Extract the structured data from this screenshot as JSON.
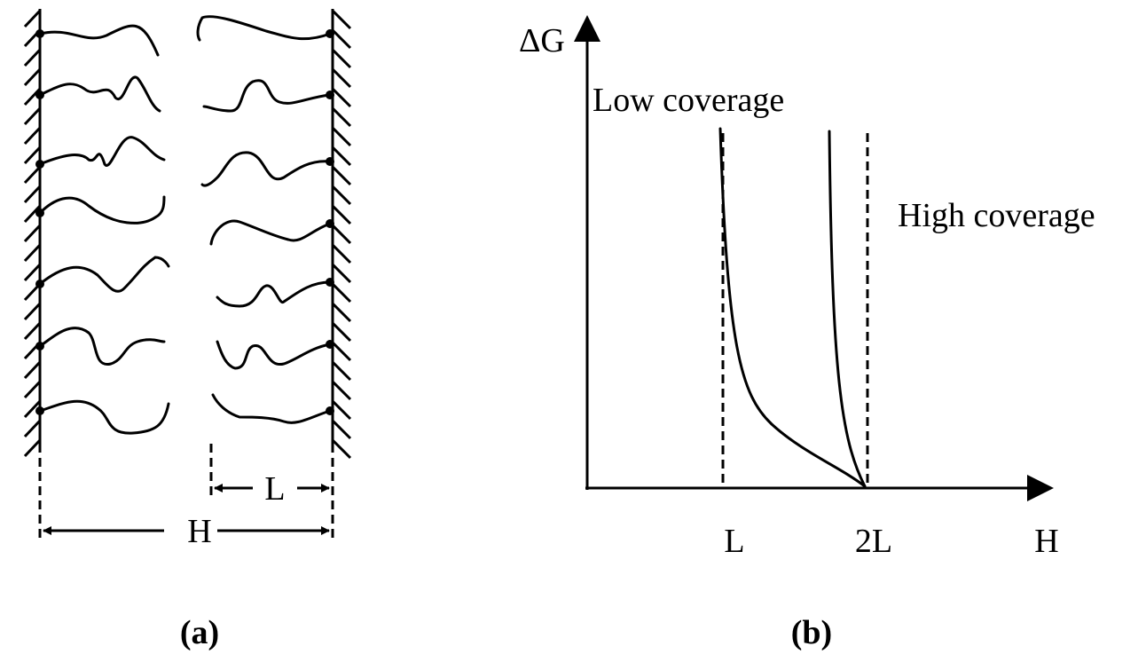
{
  "panel_a": {
    "length_label": "L",
    "separation_label": "H",
    "caption": "(a)"
  },
  "panel_b": {
    "y_axis_label": "ΔG",
    "low_coverage_label": "Low coverage",
    "high_coverage_label": "High coverage",
    "x_tick_labels": [
      "L",
      "2L",
      "H"
    ],
    "caption": "(b)"
  }
}
